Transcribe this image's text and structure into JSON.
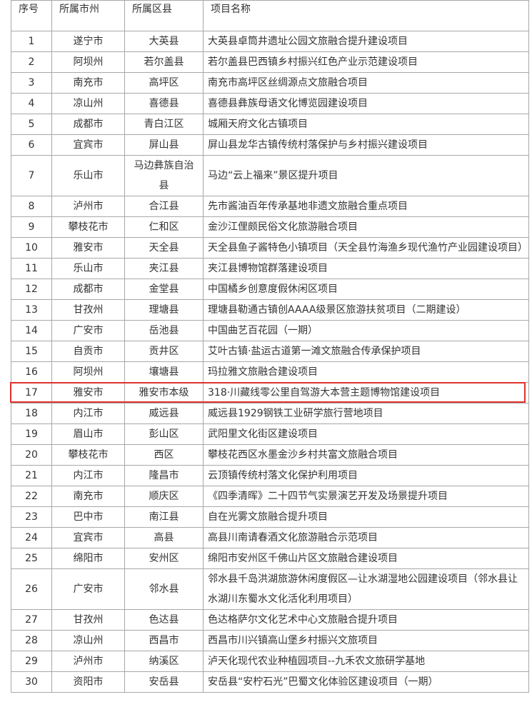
{
  "table": {
    "header": [
      "序号",
      "所属市州",
      "所属区县",
      "项目名称"
    ],
    "rows": [
      [
        "1",
        "遂宁市",
        "大英县",
        "大英县卓筒井遗址公园文旅融合提升建设项目"
      ],
      [
        "2",
        "阿坝州",
        "若尔盖县",
        "若尔盖县巴西镇乡村振兴红色产业示范建设项目"
      ],
      [
        "3",
        "南充市",
        "高坪区",
        "南充市高坪区丝绸源点文旅融合项目"
      ],
      [
        "4",
        "凉山州",
        "喜德县",
        "喜德县彝族母语文化博览园建设项目"
      ],
      [
        "5",
        "成都市",
        "青白江区",
        "城厢天府文化古镇项目"
      ],
      [
        "6",
        "宜宾市",
        "屏山县",
        "屏山县龙华古镇传统村落保护与乡村振兴建设项目"
      ],
      [
        "7",
        "乐山市",
        "马边彝族自治县",
        "马边“云上福来”景区提升项目"
      ],
      [
        "8",
        "泸州市",
        "合江县",
        "先市酱油百年传承基地非遗文旅融合重点项目"
      ],
      [
        "9",
        "攀枝花市",
        "仁和区",
        "金沙江俚颇民俗文化旅游融合项目"
      ],
      [
        "10",
        "雅安市",
        "天全县",
        "天全县鱼子酱特色小镇项目（天全县竹海渔乡现代渔竹产业园建设项目）"
      ],
      [
        "11",
        "乐山市",
        "夹江县",
        "夹江县博物馆群落建设项目"
      ],
      [
        "12",
        "成都市",
        "金堂县",
        "中国橘乡创意度假休闲区项目"
      ],
      [
        "13",
        "甘孜州",
        "理塘县",
        "理塘县勒通古镇创AAAA级景区旅游扶贫项目（二期建设）"
      ],
      [
        "14",
        "广安市",
        "岳池县",
        "中国曲艺百花园（一期）"
      ],
      [
        "15",
        "自贡市",
        "贡井区",
        "艾叶古镇·盐运古道第一滩文旅融合传承保护项目"
      ],
      [
        "16",
        "阿坝州",
        "壤塘县",
        "玛拉雅文旅融合建设项目"
      ],
      [
        "17",
        "雅安市",
        "雅安市本级",
        "318·川藏线零公里自驾游大本营主题博物馆建设项目"
      ],
      [
        "18",
        "内江市",
        "威远县",
        "威远县1929钢铁工业研学旅行营地项目"
      ],
      [
        "19",
        "眉山市",
        "彭山区",
        "武阳里文化街区建设项目"
      ],
      [
        "20",
        "攀枝花市",
        "西区",
        "攀枝花西区水墨金沙乡村共富文旅融合项目"
      ],
      [
        "21",
        "内江市",
        "隆昌市",
        "云顶镇传统村落文化保护利用项目"
      ],
      [
        "22",
        "南充市",
        "顺庆区",
        "《四季清晖》二十四节气实景演艺开发及场景提升项目"
      ],
      [
        "23",
        "巴中市",
        "南江县",
        "自在光雾文旅融合提升项目"
      ],
      [
        "24",
        "宜宾市",
        "高县",
        "高县川南请春酒文化旅游融合示范项目"
      ],
      [
        "25",
        "绵阳市",
        "安州区",
        "绵阳市安州区千佛山片区文旅融合建设项目"
      ],
      [
        "26",
        "广安市",
        "邻水县",
        "邻水县千岛洪湖旅游休闲度假区—让水湖湿地公园建设项目（邻水县让水湖川东蜀水文化活化利用项目）"
      ],
      [
        "27",
        "甘孜州",
        "色达县",
        "色达格萨尔文化艺术中心文旅融合提升项目"
      ],
      [
        "28",
        "凉山州",
        "西昌市",
        "西昌市川兴镇高山堡乡村振兴文旅项目"
      ],
      [
        "29",
        "泸州市",
        "纳溪区",
        "泸天化现代农业种植园项目--九禾农文旅研学基地"
      ],
      [
        "30",
        "资阳市",
        "安岳县",
        "安岳县“安柠石光”巴蜀文化体验区建设项目（一期）"
      ]
    ],
    "highlighted_row": 16
  }
}
